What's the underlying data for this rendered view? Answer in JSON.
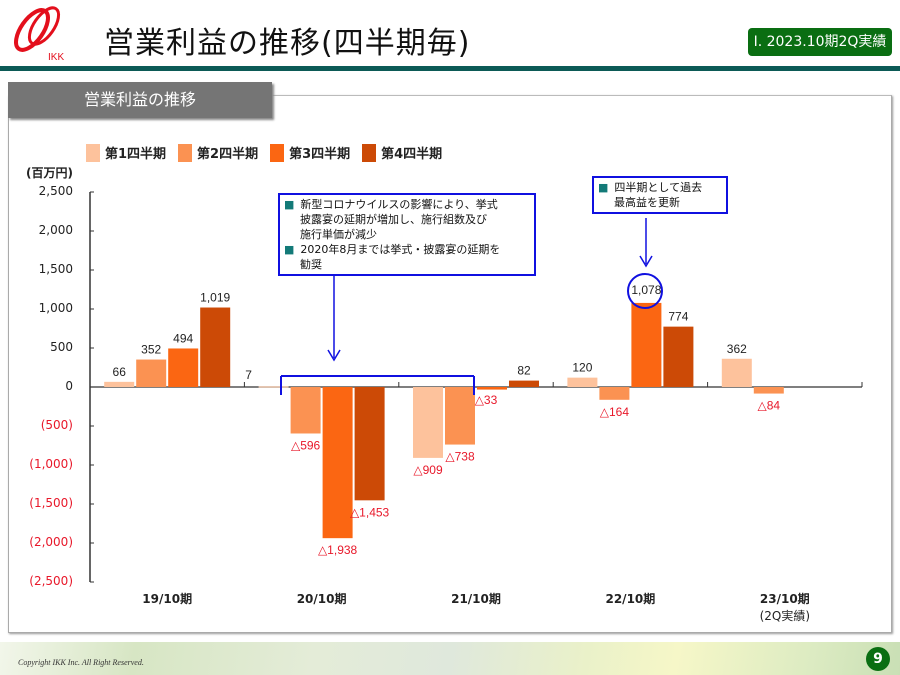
{
  "header": {
    "logo_text": "IKK",
    "title": "営業利益の推移(四半期毎)",
    "badge": "Ⅰ. 2023.10期2Q実績"
  },
  "panel": {
    "tab_label": "営業利益の推移",
    "unit": "(百万円)"
  },
  "legend": [
    {
      "label": "第1四半期",
      "color": "#fdc29c"
    },
    {
      "label": "第2四半期",
      "color": "#fb9252"
    },
    {
      "label": "第3四半期",
      "color": "#fb6612"
    },
    {
      "label": "第4四半期",
      "color": "#cc4a06"
    }
  ],
  "y_ticks": [
    {
      "label": "2,500",
      "value": 2500,
      "neg": false
    },
    {
      "label": "2,000",
      "value": 2000,
      "neg": false
    },
    {
      "label": "1,500",
      "value": 1500,
      "neg": false
    },
    {
      "label": "1,000",
      "value": 1000,
      "neg": false
    },
    {
      "label": "500",
      "value": 500,
      "neg": false
    },
    {
      "label": "0",
      "value": 0,
      "neg": false
    },
    {
      "label": "(500)",
      "value": -500,
      "neg": true
    },
    {
      "label": "(1,000)",
      "value": -1000,
      "neg": true
    },
    {
      "label": "(1,500)",
      "value": -1500,
      "neg": true
    },
    {
      "label": "(2,000)",
      "value": -2000,
      "neg": true
    },
    {
      "label": "(2,500)",
      "value": -2500,
      "neg": true
    }
  ],
  "x_labels": [
    {
      "line1": "19/10期",
      "line2": ""
    },
    {
      "line1": "20/10期",
      "line2": ""
    },
    {
      "line1": "21/10期",
      "line2": ""
    },
    {
      "line1": "22/10期",
      "line2": ""
    },
    {
      "line1": "23/10期",
      "line2": "(2Q実績)"
    }
  ],
  "callouts": {
    "covid": {
      "items": [
        "新型コロナウイルスの影響により、挙式披露宴の延期が増加し、施行組数及び施行単価が減少",
        "2020年8月までは挙式・披露宴の延期を勧奨"
      ],
      "lines": [
        [
          "新型コロナウイルスの影響により、挙式",
          "披露宴の延期が増加し、施行組数及び",
          "施行単価が減少"
        ],
        [
          "2020年8月までは挙式・披露宴の延期を",
          "勧奨"
        ]
      ]
    },
    "record": {
      "items": [
        "四半期として過去最高益を更新"
      ],
      "lines": [
        [
          "四半期として過去",
          "最高益を更新"
        ]
      ]
    }
  },
  "footer": {
    "copyright": "Copyright IKK Inc. All Right Reserved.",
    "page_number": "9"
  },
  "chart_data": {
    "type": "bar",
    "title": "営業利益の推移",
    "xlabel": "",
    "ylabel": "(百万円)",
    "ylim": [
      -2500,
      2500
    ],
    "grid": false,
    "legend_position": "top",
    "negative_label_prefix": "△",
    "categories": [
      "19/10期",
      "20/10期",
      "21/10期",
      "22/10期",
      "23/10期(2Q実績)"
    ],
    "series": [
      {
        "name": "第1四半期",
        "values": [
          66,
          7,
          -909,
          120,
          362
        ]
      },
      {
        "name": "第2四半期",
        "values": [
          352,
          -596,
          -738,
          -164,
          -84
        ]
      },
      {
        "name": "第3四半期",
        "values": [
          494,
          -1938,
          -33,
          1078,
          null
        ]
      },
      {
        "name": "第4四半期",
        "values": [
          1019,
          -1453,
          82,
          774,
          null
        ]
      }
    ],
    "annotations": [
      "新型コロナウイルスの影響により、挙式披露宴の延期が増加し、施行組数及び施行単価が減少",
      "2020年8月までは挙式・披露宴の延期を勧奨",
      "四半期として過去最高益を更新 (22/10期 第3四半期 1,078)"
    ]
  }
}
